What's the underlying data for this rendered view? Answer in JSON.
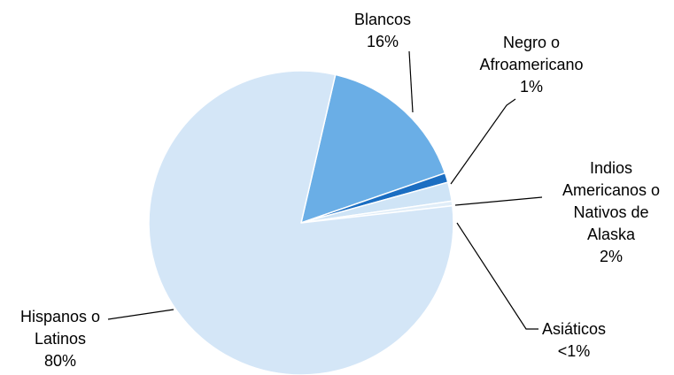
{
  "chart_data": {
    "type": "pie",
    "title": "",
    "slices": [
      {
        "label_lines": [
          "Blancos",
          "16%"
        ],
        "value": 16,
        "color": "#6aaee6"
      },
      {
        "label_lines": [
          "Negro o",
          "Afroamericano",
          "1%"
        ],
        "value": 1,
        "color": "#1b6ec2"
      },
      {
        "label_lines": [
          "Indios",
          "Americanos o",
          "Nativos de",
          "Alaska",
          "2%"
        ],
        "value": 2,
        "color": "#cfe4f6"
      },
      {
        "label_lines": [
          "Asiáticos",
          "<1%"
        ],
        "value": 0.5,
        "color": "#e0edf8"
      },
      {
        "label_lines": [
          "Hispanos o",
          "Latinos",
          "80%"
        ],
        "value": 80,
        "color": "#d4e6f7"
      }
    ]
  }
}
